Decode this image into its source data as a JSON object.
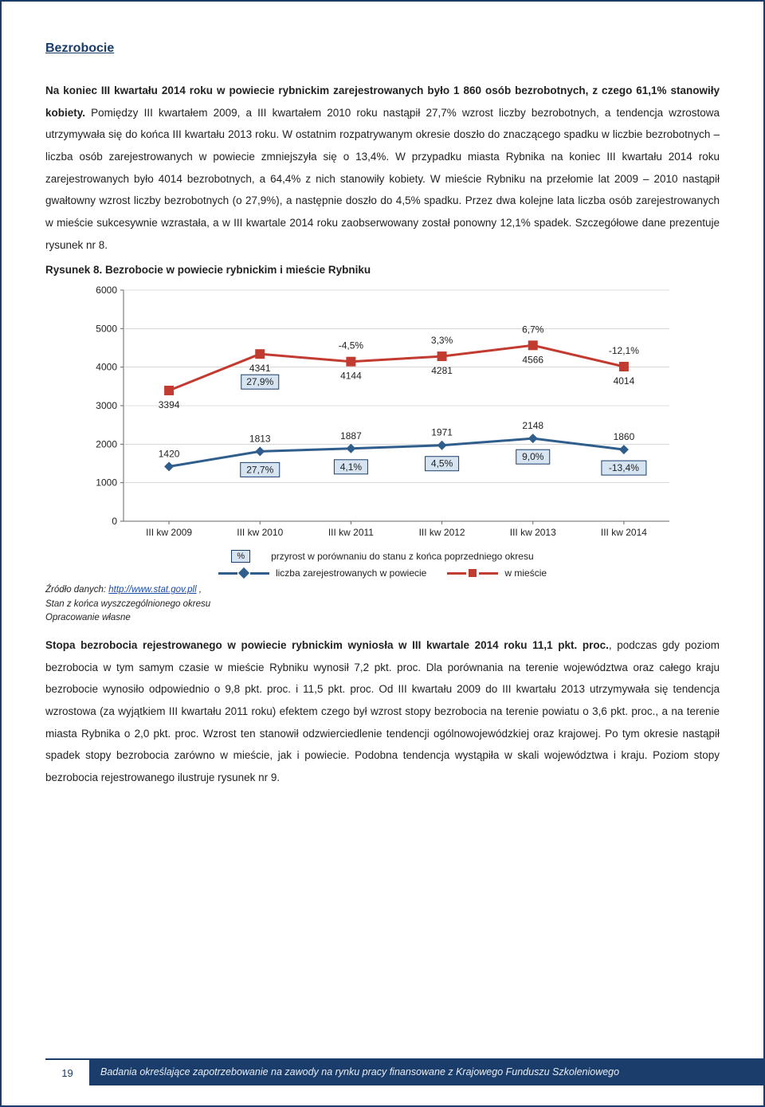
{
  "section_title": "Bezrobocie",
  "paragraph1": "Na koniec III kwartału 2014 roku w powiecie rybnickim zarejestrowanych było 1 860 osób bezrobotnych, z czego 61,1% stanowiły kobiety. Pomiędzy III kwartałem 2009, a III kwartałem 2010 roku nastąpił 27,7% wzrost liczby bezrobotnych, a tendencja wzrostowa utrzymywała się do końca III kwartału 2013 roku. W ostatnim rozpatrywanym okresie doszło do znaczącego spadku w liczbie bezrobotnych – liczba osób zarejestrowanych w powiecie zmniejszyła się o 13,4%. W przypadku miasta Rybnika na koniec III kwartału 2014 roku zarejestrowanych było 4014 bezrobotnych, a 64,4% z nich stanowiły kobiety. W mieście Rybniku na przełomie lat 2009 – 2010 nastąpił gwałtowny wzrost liczby bezrobotnych (o 27,9%), a następnie doszło do 4,5% spadku. Przez dwa kolejne lata liczba osób zarejestrowanych w mieście sukcesywnie wzrastała, a w III kwartale 2014 roku zaobserwowany został ponowny 12,1% spadek. Szczegółowe dane prezentuje rysunek nr 8.",
  "chart_title": "Rysunek 8. Bezrobocie w powiecie rybnickim i mieście Rybniku",
  "chart": {
    "type": "line",
    "categories": [
      "III kw 2009",
      "III kw 2010",
      "III kw 2011",
      "III kw 2012",
      "III kw 2013",
      "III kw 2014"
    ],
    "series_city": {
      "label": "w mieście",
      "color": "#c23b30",
      "values": [
        3394,
        4341,
        4144,
        4281,
        4566,
        4014
      ],
      "diff_labels": [
        "",
        "27,9%",
        "-4,5%",
        "3,3%",
        "6,7%",
        "-12,1%"
      ]
    },
    "series_powiat": {
      "label": "liczba zarejestrowanych w powiecie",
      "color": "#2f5e8c",
      "values": [
        1420,
        1813,
        1887,
        1971,
        2148,
        1860
      ],
      "diff_labels": [
        "",
        "27,7%",
        "4,1%",
        "4,5%",
        "9,0%",
        "-13,4%"
      ]
    },
    "ylim": [
      0,
      6000
    ],
    "ytick_step": 1000,
    "plot_background": "#ffffff",
    "grid_color": "#bfbfbf",
    "axis_color": "#666666",
    "label_box_fill": "#d6e4f2",
    "label_box_stroke": "#1a3d6b",
    "label_fontsize": 12,
    "marker_size": 12,
    "line_width": 3
  },
  "legend_note": "przyrost w porównaniu do stanu z końca poprzedniego okresu",
  "legend_pct_symbol": "%",
  "source_label": "Źródło danych: ",
  "source_url_text": "http://www.stat.gov.pll",
  "source_tail": " ,",
  "source_line2": "Stan z końca wyszczególnionego okresu",
  "source_line3": "Opracowanie własne",
  "paragraph2_a": "Stopa bezrobocia rejestrowanego w powiecie rybnickim wyniosła w III kwartale 2014 roku 11,1 pkt. proc.",
  "paragraph2_b": ", podczas gdy poziom bezrobocia w tym samym czasie w mieście Rybniku wynosił 7,2 pkt. proc. Dla porównania na terenie województwa oraz całego kraju bezrobocie wynosiło odpowiednio o 9,8 pkt. proc. i 11,5 pkt. proc. Od III kwartału 2009 do III kwartału 2013 utrzymywała się tendencja wzrostowa (za wyjątkiem III kwartału 2011 roku) efektem czego był wzrost stopy bezrobocia na terenie powiatu o 3,6 pkt. proc., a na terenie miasta Rybnika o 2,0 pkt. proc. Wzrost ten stanowił odzwierciedlenie tendencji ogólnowojewódzkiej oraz krajowej. Po tym okresie nastąpił spadek stopy bezrobocia zarówno w mieście, jak i powiecie. Podobna tendencja wystąpiła w skali województwa i kraju. Poziom stopy bezrobocia rejestrowanego ilustruje rysunek nr 9.",
  "page_number": "19",
  "footer_text": "Badania określające zapotrzebowanie na zawody na rynku pracy finansowane z Krajowego Funduszu Szkoleniowego"
}
